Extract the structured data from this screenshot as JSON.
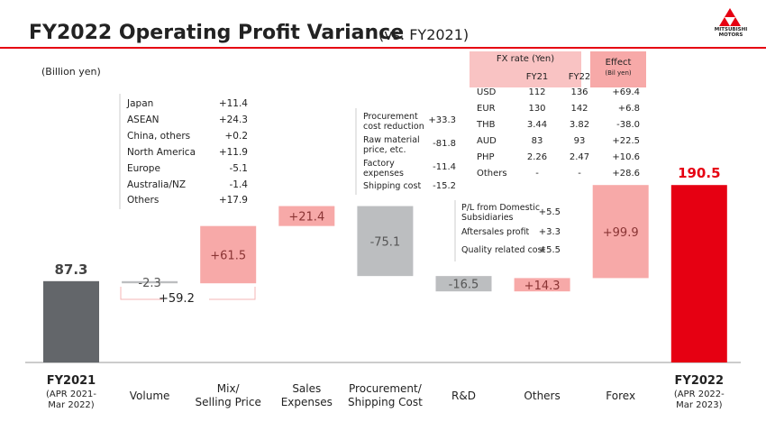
{
  "header": {
    "title": "FY2022 Operating Profit Variance",
    "subtitle": "(vs. FY2021)",
    "logo": "MITSUBISHI\nMOTORS"
  },
  "chart_data": {
    "type": "waterfall",
    "unit_label": "(Billion yen)",
    "start": {
      "label": "FY2021",
      "note": "(APR 2021-\nMar 2022)",
      "value": 87.3,
      "color": "#63666a"
    },
    "end": {
      "label": "FY2022",
      "note": "(APR 2022-\nMar 2023)",
      "value": 190.5,
      "color": "#e60012"
    },
    "categories": [
      "Volume",
      "Mix/\nSelling Price",
      "Sales\nExpenses",
      "Procurement/\nShipping Cost",
      "R&D",
      "Others",
      "Forex"
    ],
    "values": [
      -2.3,
      61.5,
      21.4,
      -75.1,
      -16.5,
      14.3,
      99.9
    ],
    "value_labels": [
      "-2.3",
      "+61.5",
      "+21.4",
      "-75.1",
      "-16.5",
      "+14.3",
      "+99.9"
    ],
    "increase_color": "#f7a9a8",
    "decrease_color": "#bcbec0",
    "bracket_label": "+59.2"
  },
  "regions": [
    {
      "label": "Japan",
      "value": "+11.4"
    },
    {
      "label": "ASEAN",
      "value": "+24.3"
    },
    {
      "label": "China, others",
      "value": "+0.2"
    },
    {
      "label": "North America",
      "value": "+11.9"
    },
    {
      "label": "Europe",
      "value": "-5.1"
    },
    {
      "label": "Australia/NZ",
      "value": "-1.4"
    },
    {
      "label": "Others",
      "value": "+17.9"
    }
  ],
  "procurement": [
    {
      "label": "Procurement\ncost reduction",
      "value": "+33.3"
    },
    {
      "label": "Raw material\nprice, etc.",
      "value": "-81.8"
    },
    {
      "label": "Factory\nexpenses",
      "value": "-11.4"
    },
    {
      "label": "Shipping cost",
      "value": "-15.2"
    }
  ],
  "others": [
    {
      "label": "P/L from Domestic\nSubsidiaries",
      "value": "+5.5"
    },
    {
      "label": "Aftersales profit",
      "value": "+3.3"
    },
    {
      "label": "Quality related cost",
      "value": "+5.5"
    }
  ],
  "fx_table": {
    "header": "FX rate (Yen)",
    "columns": [
      "FY21",
      "FY22"
    ],
    "effect": "Effect",
    "effect_unit": "(Bil yen)",
    "rows": [
      [
        "USD",
        "112",
        "136",
        "+69.4"
      ],
      [
        "EUR",
        "130",
        "142",
        "+6.8"
      ],
      [
        "THB",
        "3.44",
        "3.82",
        "-38.0"
      ],
      [
        "AUD",
        "83",
        "93",
        "+22.5"
      ],
      [
        "PHP",
        "2.26",
        "2.47",
        "+10.6"
      ],
      [
        "Others",
        "-",
        "-",
        "+28.6"
      ]
    ]
  }
}
